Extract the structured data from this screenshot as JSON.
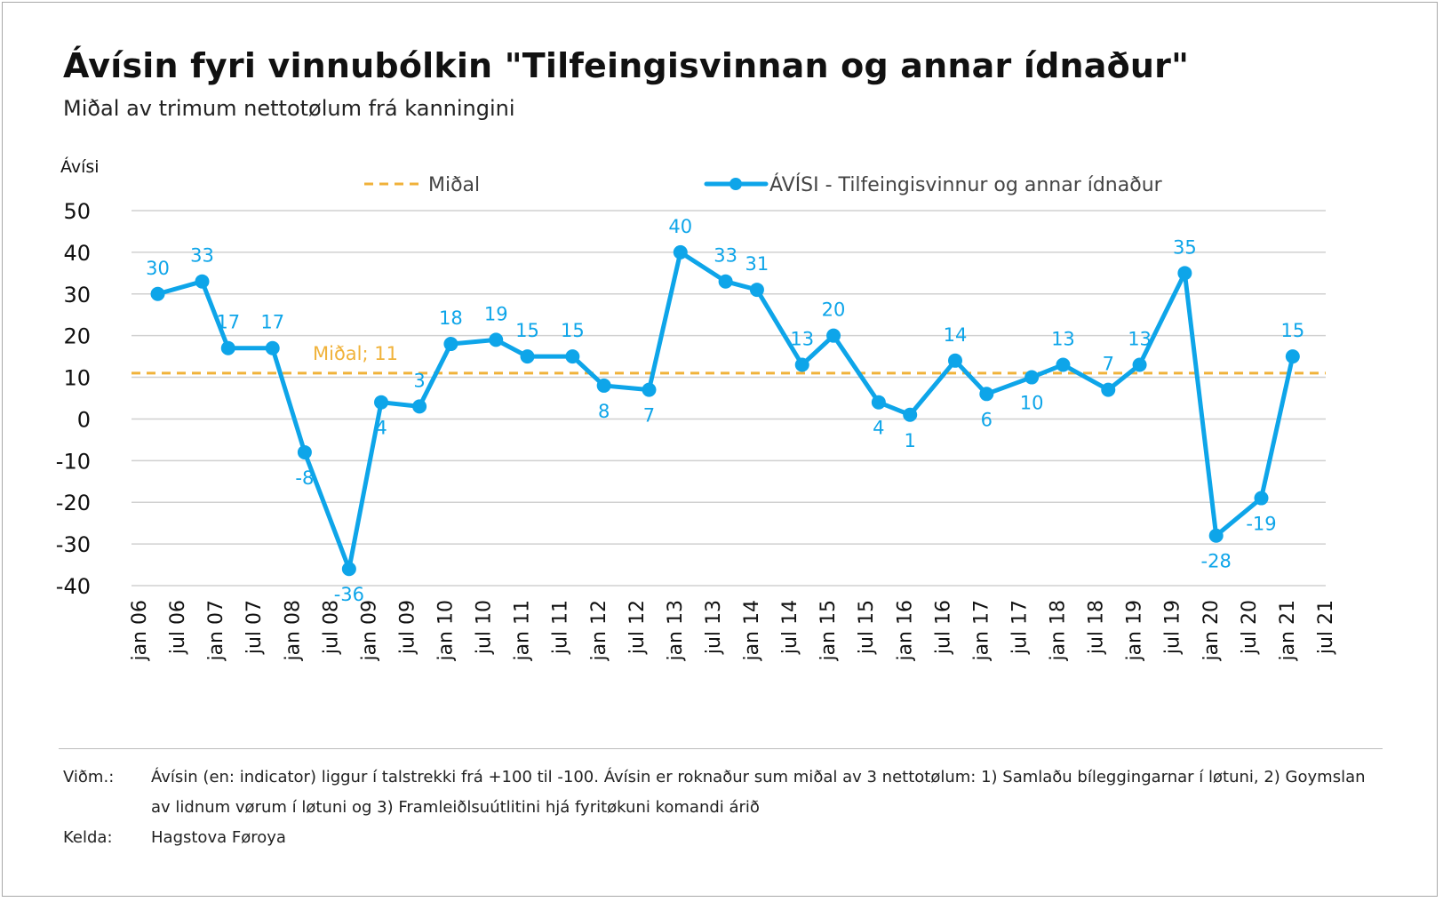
{
  "title": "Ávísin fyri vinnubólkin \"Tilfeingisvinnan og annar ídnaður\"",
  "subtitle": "Miðal av trimum nettotølum frá kanningini",
  "footer": {
    "note_label": "Viðm.:",
    "note_text": "Ávísin (en: indicator) liggur í talstrekki frá +100 til -100. Ávísin er roknaður sum miðal av 3 nettotølum: 1) Samlaðu bíleggingarnar í løtuni, 2) Goymslan av lidnum vørum í løtuni og 3) Framleiðlsuútlitini hjá fyritøkuni komandi árið",
    "source_label": "Kelda:",
    "source_text": "Hagstova Føroya"
  },
  "colors": {
    "series": "#0ea5e9",
    "average": "#f0b23a",
    "grid": "#d0d0d0",
    "text": "#111111"
  },
  "chart_data": {
    "type": "line",
    "ylabel": "Ávísi",
    "ylim": [
      -40,
      50
    ],
    "yticks": [
      -40,
      -30,
      -20,
      -10,
      0,
      10,
      20,
      30,
      40,
      50
    ],
    "grid": true,
    "legend_position": "top",
    "x_tick_labels": [
      "jan 06",
      "jul 06",
      "jan 07",
      "jul 07",
      "jan 08",
      "jul 08",
      "jan 09",
      "jul 09",
      "jan 10",
      "jul 10",
      "jan 11",
      "jul 11",
      "jan 12",
      "jul 12",
      "jan 13",
      "jul 13",
      "jan 14",
      "jul 14",
      "jan 15",
      "jul 15",
      "jan 16",
      "jul 16",
      "jan 17",
      "jul 17",
      "jan 18",
      "jul 18",
      "jan 19",
      "jul 19",
      "jan 20",
      "jul 20",
      "jan 21",
      "jul 21"
    ],
    "x_tick_min": 2006.0,
    "x_tick_step": 0.5,
    "series": [
      {
        "name": "ÁVÍSI - Tilfeingisvinnur og annar ídnaður",
        "points": [
          {
            "t": 2006.25,
            "v": 30
          },
          {
            "t": 2006.83,
            "v": 33
          },
          {
            "t": 2007.17,
            "v": 17
          },
          {
            "t": 2007.75,
            "v": 17
          },
          {
            "t": 2008.17,
            "v": -8
          },
          {
            "t": 2008.75,
            "v": -36
          },
          {
            "t": 2009.17,
            "v": 4
          },
          {
            "t": 2009.67,
            "v": 3
          },
          {
            "t": 2010.08,
            "v": 18
          },
          {
            "t": 2010.67,
            "v": 19
          },
          {
            "t": 2011.08,
            "v": 15
          },
          {
            "t": 2011.67,
            "v": 15
          },
          {
            "t": 2012.08,
            "v": 8
          },
          {
            "t": 2012.67,
            "v": 7
          },
          {
            "t": 2013.08,
            "v": 40
          },
          {
            "t": 2013.67,
            "v": 33
          },
          {
            "t": 2014.08,
            "v": 31
          },
          {
            "t": 2014.67,
            "v": 13
          },
          {
            "t": 2015.08,
            "v": 20
          },
          {
            "t": 2015.67,
            "v": 4
          },
          {
            "t": 2016.08,
            "v": 1
          },
          {
            "t": 2016.67,
            "v": 14
          },
          {
            "t": 2017.08,
            "v": 6
          },
          {
            "t": 2017.67,
            "v": 10
          },
          {
            "t": 2018.08,
            "v": 13
          },
          {
            "t": 2018.67,
            "v": 7
          },
          {
            "t": 2019.08,
            "v": 13
          },
          {
            "t": 2019.67,
            "v": 35
          },
          {
            "t": 2020.08,
            "v": -28
          },
          {
            "t": 2020.67,
            "v": -19
          },
          {
            "t": 2021.08,
            "v": 15
          }
        ],
        "label_positions": [
          "above",
          "above",
          "above",
          "above",
          "below",
          "below",
          "below",
          "above",
          "above",
          "above",
          "above",
          "above",
          "below",
          "below",
          "above",
          "above",
          "above",
          "above",
          "above",
          "below",
          "below",
          "above",
          "below",
          "below",
          "above",
          "above",
          "above",
          "above",
          "below",
          "below",
          "above"
        ]
      },
      {
        "name": "Miðal",
        "value": 11,
        "annotation": "Miðal; 11",
        "style": "dashed"
      }
    ]
  }
}
